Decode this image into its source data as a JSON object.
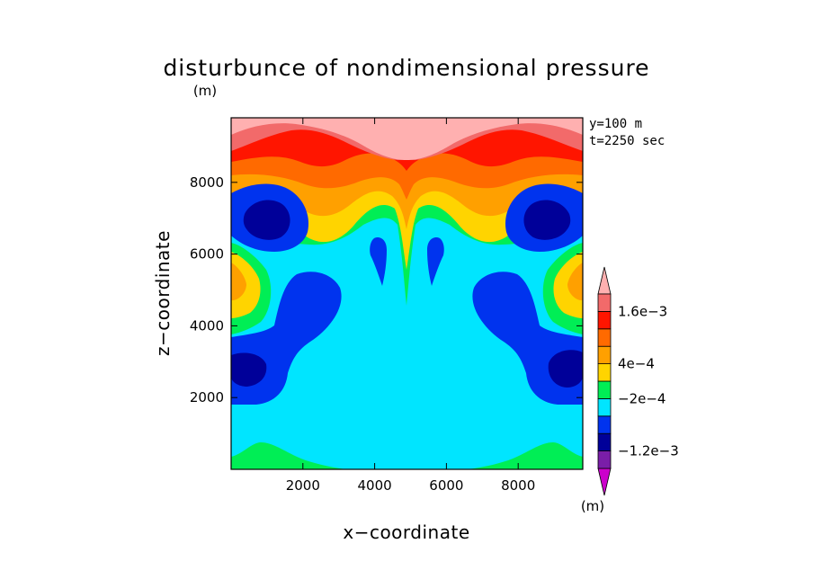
{
  "chart_data": {
    "type": "heatmap",
    "title": "disturbunce of nondimensional pressure",
    "xlabel": "x−coordinate",
    "ylabel": "z−coordinate",
    "unit_top": "(m)",
    "unit_colorbar": "(m)",
    "annotations": [
      "y=100  m",
      "t=2250 sec"
    ],
    "xlim": [
      0,
      9800
    ],
    "ylim": [
      0,
      9800
    ],
    "x_ticks": [
      2000,
      4000,
      6000,
      8000
    ],
    "x_tick_labels": [
      "2000",
      "4000",
      "6000",
      "8000"
    ],
    "y_ticks": [
      2000,
      4000,
      6000,
      8000
    ],
    "y_tick_labels": [
      "2000",
      "4000",
      "6000",
      "8000"
    ],
    "colorbar": {
      "levels": [
        -0.0016,
        -0.0012,
        -0.0008,
        -0.0004,
        -0.0002,
        0,
        0.0004,
        0.0008,
        0.0012,
        0.0016
      ],
      "colors": [
        "#cc00cc",
        "#7a1ea8",
        "#000099",
        "#0033ee",
        "#00e5ff",
        "#00ee55",
        "#ffd400",
        "#ffa000",
        "#ff6a00",
        "#ff1500",
        "#f26a6a",
        "#ffb0b0"
      ],
      "labels": [
        {
          "text": "1.6e−3",
          "value": 0.0016
        },
        {
          "text": "4e−4",
          "value": 0.0004
        },
        {
          "text": "−2e−4",
          "value": -0.0002
        },
        {
          "text": "−1.2e−3",
          "value": -0.0012
        }
      ]
    },
    "field_summary": {
      "background_value": "between -2e-4 and 0 (cyan)",
      "top_band": "positive values increasing upward, max > 1.6e-3 near z=9800",
      "low_centers": [
        {
          "x": 1100,
          "z": 7100,
          "value": "< -8e-4"
        },
        {
          "x": 8800,
          "z": 7100,
          "value": "< -8e-4"
        },
        {
          "x": 500,
          "z": 2800,
          "value": "< -8e-4"
        },
        {
          "x": 9300,
          "z": 2800,
          "value": "< -8e-4"
        }
      ],
      "high_centers": [
        {
          "x": 100,
          "z": 5300,
          "value": "> 8e-4"
        },
        {
          "x": 9700,
          "z": 5300,
          "value": "> 8e-4"
        }
      ]
    }
  }
}
